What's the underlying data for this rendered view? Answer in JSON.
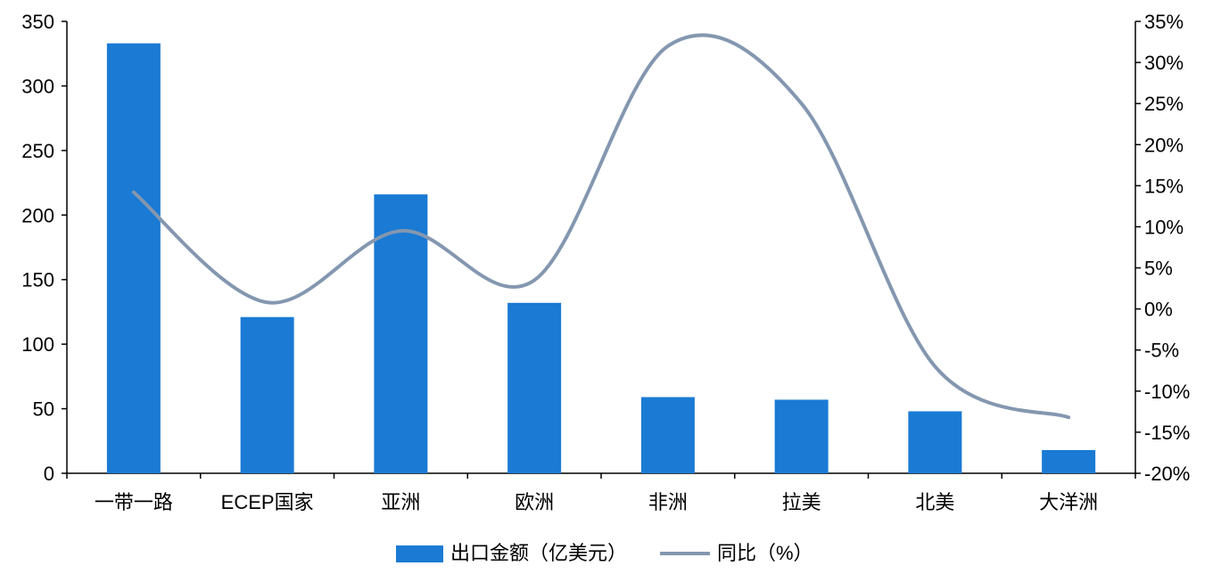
{
  "chart_data": {
    "type": "bar",
    "categories": [
      "一带一路",
      "ECEP国家",
      "亚洲",
      "欧洲",
      "非洲",
      "拉美",
      "北美",
      "大洋洲"
    ],
    "series": [
      {
        "name": "出口金额（亿美元）",
        "type": "bar",
        "axis": "left",
        "values": [
          333,
          121,
          216,
          132,
          59,
          57,
          48,
          18
        ]
      },
      {
        "name": "同比（%）",
        "type": "line",
        "axis": "right",
        "values": [
          14.2,
          0.8,
          9.5,
          3.5,
          32.0,
          25.0,
          -7.0,
          -13.2
        ]
      }
    ],
    "y_left": {
      "min": 0,
      "max": 350,
      "step": 50,
      "ticks": [
        "0",
        "50",
        "100",
        "150",
        "200",
        "250",
        "300",
        "350"
      ]
    },
    "y_right": {
      "min": -20,
      "max": 35,
      "step": 5,
      "ticks": [
        "-20%",
        "-15%",
        "-10%",
        "-5%",
        "0%",
        "5%",
        "10%",
        "15%",
        "20%",
        "25%",
        "30%",
        "35%"
      ]
    },
    "legend_position": "bottom-center",
    "grid": false,
    "colors": {
      "bar": "#1a7ad4",
      "line": "#8497b0",
      "axis": "#000000"
    }
  }
}
